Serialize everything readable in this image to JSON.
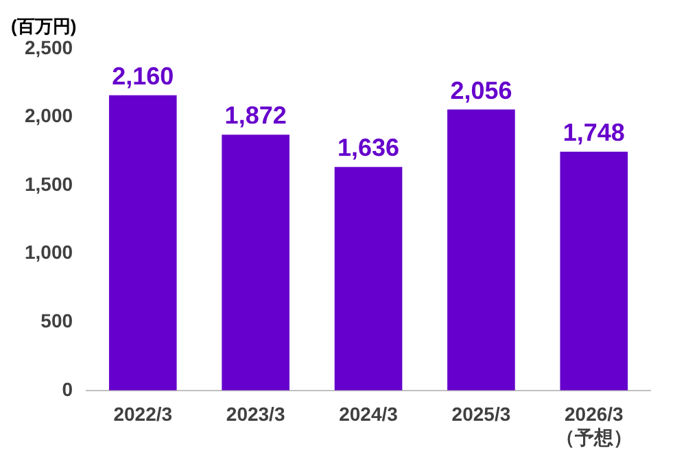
{
  "chart_data": {
    "type": "bar",
    "ylabel": "(百万円)",
    "categories": [
      "2022/3",
      "2023/3",
      "2024/3",
      "2025/3",
      "2026/3\n（予想）"
    ],
    "values": [
      2160,
      1872,
      1636,
      2056,
      1748
    ],
    "color": "#6600cc",
    "ylim": [
      0,
      2500
    ],
    "yticks": [
      0,
      500,
      {
        "value": 1000,
        "label": "1,000"
      },
      {
        "value": 1500,
        "label": "1,500"
      },
      {
        "value": 2000,
        "label": "2,000"
      },
      {
        "value": 2500,
        "label": "2,500"
      }
    ],
    "value_labels": [
      "2,160",
      "1,872",
      "1,636",
      "2,056",
      "1,748"
    ],
    "grid": false,
    "legend": false
  }
}
